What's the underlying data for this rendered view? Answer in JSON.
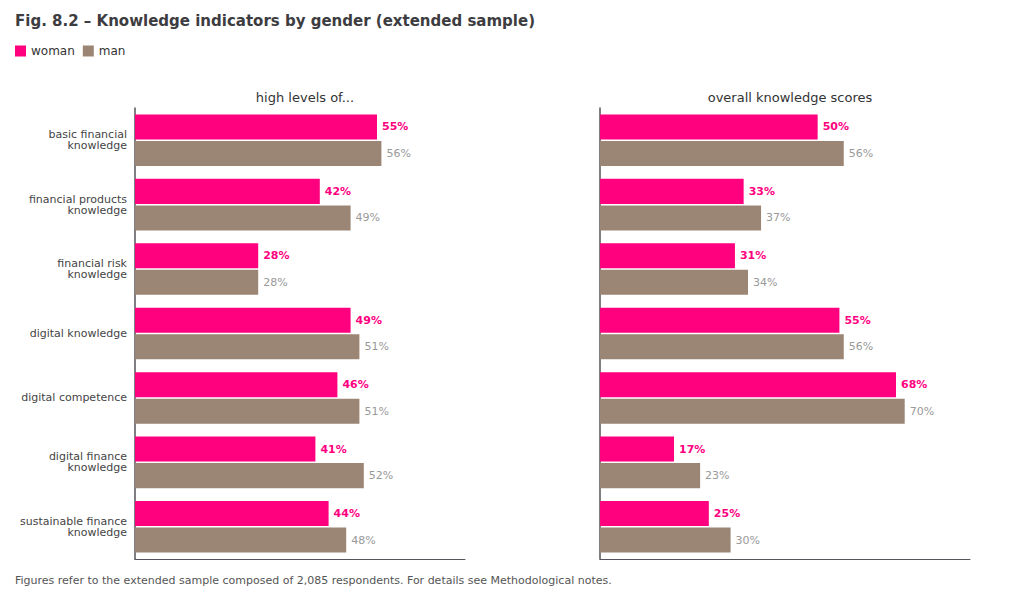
{
  "title": "Fig. 8.2 – Knowledge indicators by gender (extended sample)",
  "footnote": "Figures refer to the extended sample composed of 2,085 respondents. For details see Methodological notes.",
  "chart_data": [
    {
      "type": "bar",
      "orientation": "horizontal",
      "title": "high levels of...",
      "categories": [
        "basic financial\nknowledge",
        "financial products\nknowledge",
        "financial risk\nknowledge",
        "digital knowledge",
        "digital competence",
        "digital finance\nknowledge",
        "sustainable finance\nknowledge"
      ],
      "series": [
        {
          "name": "woman",
          "color": "#ff007f",
          "values": [
            55,
            42,
            28,
            49,
            46,
            41,
            44
          ],
          "value_labels": [
            "55%",
            "42%",
            "28%",
            "49%",
            "46%",
            "41%",
            "44%"
          ]
        },
        {
          "name": "man",
          "color": "#9b8675",
          "values": [
            56,
            49,
            28,
            51,
            51,
            52,
            48
          ],
          "value_labels": [
            "56%",
            "49%",
            "28%",
            "51%",
            "51%",
            "52%",
            "48%"
          ]
        }
      ],
      "xlim": [
        0,
        75
      ],
      "data_labels": true,
      "tick_labels": "y",
      "grid": false,
      "legend": "top-left"
    },
    {
      "type": "bar",
      "orientation": "horizontal",
      "title": "overall knowledge scores",
      "categories": [
        "basic financial\nknowledge",
        "financial products\nknowledge",
        "financial risk\nknowledge",
        "digital knowledge",
        "digital competence",
        "digital finance\nknowledge",
        "sustainable finance\nknowledge"
      ],
      "series": [
        {
          "name": "woman",
          "color": "#ff007f",
          "values": [
            50,
            33,
            31,
            55,
            68,
            17,
            25
          ],
          "value_labels": [
            "50%",
            "33%",
            "31%",
            "55%",
            "68%",
            "17%",
            "25%"
          ]
        },
        {
          "name": "man",
          "color": "#9b8675",
          "values": [
            56,
            37,
            34,
            56,
            70,
            23,
            30
          ],
          "value_labels": [
            "56%",
            "37%",
            "34%",
            "56%",
            "70%",
            "23%",
            "30%"
          ]
        }
      ],
      "xlim": [
        0,
        85
      ],
      "data_labels": true,
      "tick_labels": false,
      "grid": false
    }
  ]
}
